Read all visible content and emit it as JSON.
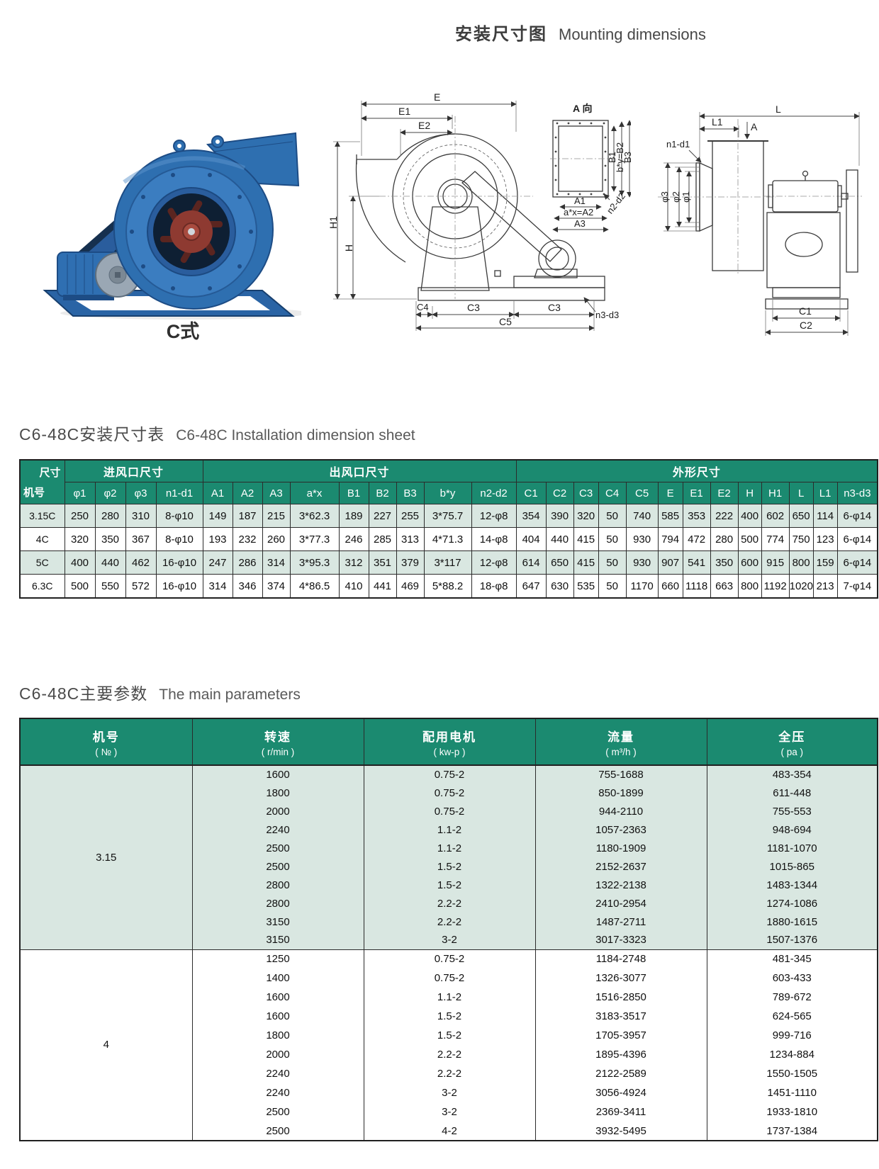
{
  "page": {
    "title_zh": "安装尺寸图",
    "title_en": "Mounting dimensions"
  },
  "photo": {
    "caption": "C式"
  },
  "diagram_side": {
    "dims": [
      "E",
      "E1",
      "E2",
      "H1",
      "H",
      "C4",
      "C3",
      "C3",
      "C5",
      "n3-d3"
    ],
    "detail": {
      "title": "A 向",
      "dims": [
        "A1",
        "a*x=A2",
        "A3",
        "B1",
        "b*y=B2",
        "B3",
        "n2-d2"
      ]
    }
  },
  "diagram_rear": {
    "dims": [
      "L",
      "L1",
      "A",
      "n1-d1",
      "φ3",
      "φ2",
      "φ1",
      "C1",
      "C2"
    ]
  },
  "dimension_sheet": {
    "heading_zh": "C6-48C安装尺寸表",
    "heading_en": "C6-48C Installation dimension sheet",
    "corner": {
      "top": "尺寸",
      "bottom": "机号"
    },
    "groups": [
      {
        "label": "进风口尺寸",
        "span": 4
      },
      {
        "label": "出风口尺寸",
        "span": 9
      },
      {
        "label": "外形尺寸",
        "span": 13
      }
    ],
    "columns": [
      "φ1",
      "φ2",
      "φ3",
      "n1-d1",
      "A1",
      "A2",
      "A3",
      "a*x",
      "B1",
      "B2",
      "B3",
      "b*y",
      "n2-d2",
      "C1",
      "C2",
      "C3",
      "C4",
      "C5",
      "E",
      "E1",
      "E2",
      "H",
      "H1",
      "L",
      "L1",
      "n3-d3"
    ],
    "rows": [
      {
        "model": "3.15C",
        "values": [
          "250",
          "280",
          "310",
          "8-φ10",
          "149",
          "187",
          "215",
          "3*62.3",
          "189",
          "227",
          "255",
          "3*75.7",
          "12-φ8",
          "354",
          "390",
          "320",
          "50",
          "740",
          "585",
          "353",
          "222",
          "400",
          "602",
          "650",
          "114",
          "6-φ14"
        ]
      },
      {
        "model": "4C",
        "values": [
          "320",
          "350",
          "367",
          "8-φ10",
          "193",
          "232",
          "260",
          "3*77.3",
          "246",
          "285",
          "313",
          "4*71.3",
          "14-φ8",
          "404",
          "440",
          "415",
          "50",
          "930",
          "794",
          "472",
          "280",
          "500",
          "774",
          "750",
          "123",
          "6-φ14"
        ]
      },
      {
        "model": "5C",
        "values": [
          "400",
          "440",
          "462",
          "16-φ10",
          "247",
          "286",
          "314",
          "3*95.3",
          "312",
          "351",
          "379",
          "3*117",
          "12-φ8",
          "614",
          "650",
          "415",
          "50",
          "930",
          "907",
          "541",
          "350",
          "600",
          "915",
          "800",
          "159",
          "6-φ14"
        ]
      },
      {
        "model": "6.3C",
        "values": [
          "500",
          "550",
          "572",
          "16-φ10",
          "314",
          "346",
          "374",
          "4*86.5",
          "410",
          "441",
          "469",
          "5*88.2",
          "18-φ8",
          "647",
          "630",
          "535",
          "50",
          "1170",
          "660",
          "1118",
          "663",
          "800",
          "1192",
          "1020",
          "213",
          "7-φ14"
        ]
      }
    ]
  },
  "parameters": {
    "heading_zh": "C6-48C主要参数",
    "heading_en": "The main parameters",
    "columns": [
      {
        "zh": "机号",
        "unit": "( № )"
      },
      {
        "zh": "转速",
        "unit": "( r/min )"
      },
      {
        "zh": "配用电机",
        "unit": "( kw-p )"
      },
      {
        "zh": "流量",
        "unit": "( m³/h )"
      },
      {
        "zh": "全压",
        "unit": "( pa )"
      }
    ],
    "sections": [
      {
        "model": "3.15",
        "rows": [
          [
            "1600",
            "0.75-2",
            "755-1688",
            "483-354"
          ],
          [
            "1800",
            "0.75-2",
            "850-1899",
            "611-448"
          ],
          [
            "2000",
            "0.75-2",
            "944-2110",
            "755-553"
          ],
          [
            "2240",
            "1.1-2",
            "1057-2363",
            "948-694"
          ],
          [
            "2500",
            "1.1-2",
            "1180-1909",
            "1181-1070"
          ],
          [
            "2500",
            "1.5-2",
            "2152-2637",
            "1015-865"
          ],
          [
            "2800",
            "1.5-2",
            "1322-2138",
            "1483-1344"
          ],
          [
            "2800",
            "2.2-2",
            "2410-2954",
            "1274-1086"
          ],
          [
            "3150",
            "2.2-2",
            "1487-2711",
            "1880-1615"
          ],
          [
            "3150",
            "3-2",
            "3017-3323",
            "1507-1376"
          ]
        ]
      },
      {
        "model": "4",
        "rows": [
          [
            "1250",
            "0.75-2",
            "1184-2748",
            "481-345"
          ],
          [
            "1400",
            "0.75-2",
            "1326-3077",
            "603-433"
          ],
          [
            "1600",
            "1.1-2",
            "1516-2850",
            "789-672"
          ],
          [
            "1600",
            "1.5-2",
            "3183-3517",
            "624-565"
          ],
          [
            "1800",
            "1.5-2",
            "1705-3957",
            "999-716"
          ],
          [
            "2000",
            "2.2-2",
            "1895-4396",
            "1234-884"
          ],
          [
            "2240",
            "2.2-2",
            "2122-2589",
            "1550-1505"
          ],
          [
            "2240",
            "3-2",
            "3056-4924",
            "1451-1110"
          ],
          [
            "2500",
            "3-2",
            "2369-3411",
            "1933-1810"
          ],
          [
            "2500",
            "4-2",
            "3932-5495",
            "1737-1384"
          ]
        ]
      }
    ]
  }
}
